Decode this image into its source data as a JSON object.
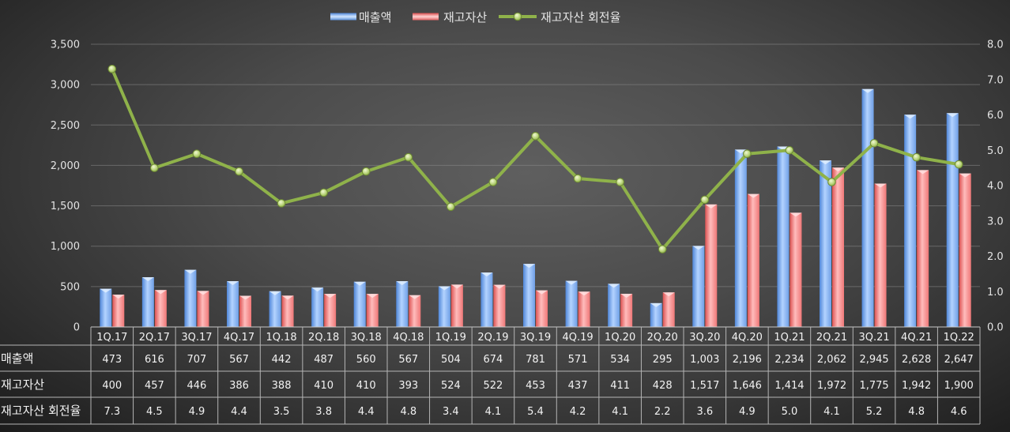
{
  "chart_data": {
    "type": "bar",
    "categories": [
      "1Q.17",
      "2Q.17",
      "3Q.17",
      "4Q.17",
      "1Q.18",
      "2Q.18",
      "3Q.18",
      "4Q.18",
      "1Q.19",
      "2Q.19",
      "3Q.19",
      "4Q.19",
      "1Q.20",
      "2Q.20",
      "3Q.20",
      "4Q.20",
      "1Q.21",
      "2Q.21",
      "3Q.21",
      "4Q.21",
      "1Q.22"
    ],
    "series": [
      {
        "name": "매출액",
        "type": "bar",
        "axis": "primary",
        "color": "#6fa3ee",
        "values": [
          473,
          616,
          707,
          567,
          442,
          487,
          560,
          567,
          504,
          674,
          781,
          571,
          534,
          295,
          1003,
          2196,
          2234,
          2062,
          2945,
          2628,
          2647
        ]
      },
      {
        "name": "재고자산",
        "type": "bar",
        "axis": "primary",
        "color": "#f07c7c",
        "values": [
          400,
          457,
          446,
          386,
          388,
          410,
          410,
          393,
          524,
          522,
          453,
          437,
          411,
          428,
          1517,
          1646,
          1414,
          1972,
          1775,
          1942,
          1900
        ]
      },
      {
        "name": "재고자산 회전율",
        "type": "line",
        "axis": "secondary",
        "color": "#8fb24a",
        "values": [
          7.3,
          4.5,
          4.9,
          4.4,
          3.5,
          3.8,
          4.4,
          4.8,
          3.4,
          4.1,
          5.4,
          4.2,
          4.1,
          2.2,
          3.6,
          4.9,
          5.0,
          4.1,
          5.2,
          4.8,
          4.6
        ]
      }
    ],
    "ylim": [
      0,
      3500
    ],
    "y2lim": [
      0,
      8
    ],
    "yticks": [
      "0",
      "500",
      "1,000",
      "1,500",
      "2,000",
      "2,500",
      "3,000",
      "3,500"
    ],
    "y2ticks": [
      "0.0",
      "1.0",
      "2.0",
      "3.0",
      "4.0",
      "5.0",
      "6.0",
      "7.0",
      "8.0"
    ],
    "grid": true,
    "legend": "top",
    "data_table": true,
    "background": "#4a4a4a"
  }
}
